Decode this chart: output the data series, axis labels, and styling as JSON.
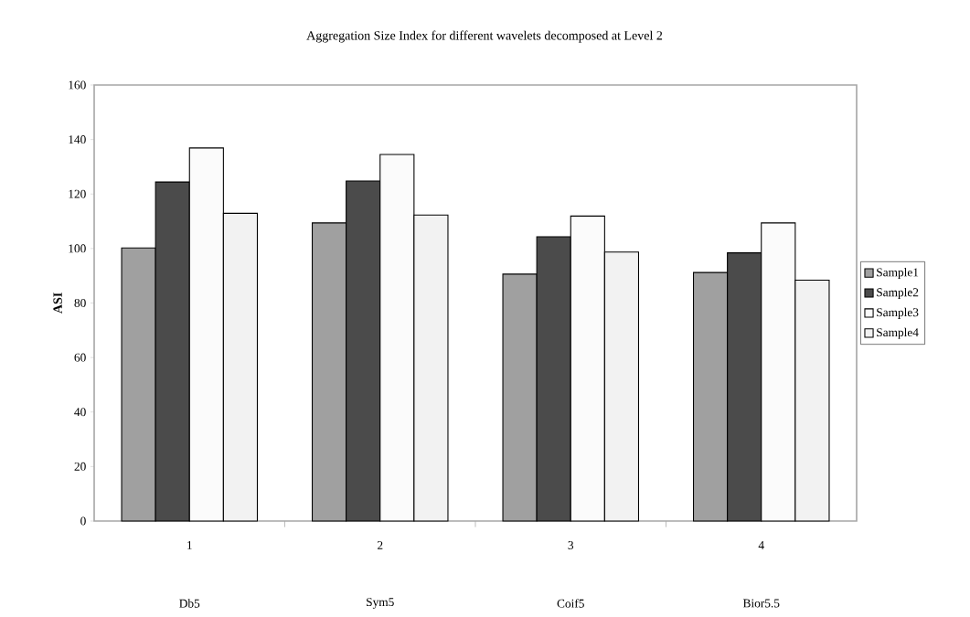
{
  "chart_data": {
    "type": "bar",
    "title": "Aggregation Size Index for different wavelets decomposed at Level 2",
    "ylabel": "ASI",
    "categories": [
      "1",
      "2",
      "3",
      "4"
    ],
    "series": [
      {
        "name": "Sample1",
        "color": "#a0a0a0",
        "values": [
          100.2,
          109.4,
          90.6,
          91.2
        ]
      },
      {
        "name": "Sample2",
        "color": "#4b4b4b",
        "values": [
          124.4,
          124.8,
          104.3,
          98.4
        ]
      },
      {
        "name": "Sample3",
        "color": "#fbfbfb",
        "values": [
          136.9,
          134.5,
          111.9,
          109.4
        ]
      },
      {
        "name": "Sample4",
        "color": "#f2f2f2",
        "values": [
          112.9,
          112.3,
          98.7,
          88.4
        ]
      }
    ],
    "ylim": [
      0,
      160
    ],
    "yticks": [
      0,
      20,
      40,
      60,
      80,
      100,
      120,
      140,
      160
    ],
    "legend": "right",
    "annotations": [
      "Db5",
      "Sym5",
      "Coif5",
      "Bior5.5"
    ]
  }
}
